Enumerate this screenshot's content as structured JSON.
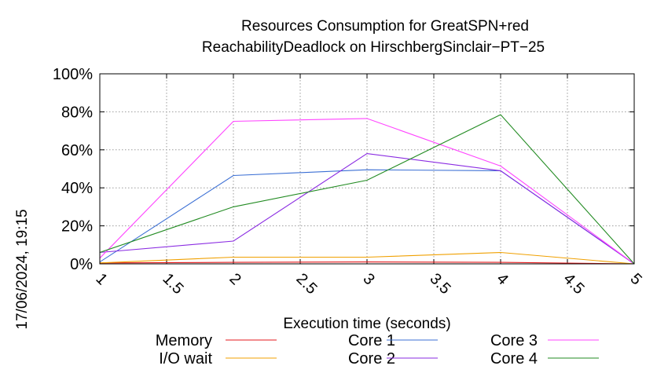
{
  "chart_data": {
    "type": "line",
    "title": "Resources Consumption for GreatSPN+red",
    "subtitle": "ReachabilityDeadlock on HirschbergSinclair−PT−25",
    "xlabel": "Execution time (seconds)",
    "ylabel": "",
    "xlim": [
      1,
      5
    ],
    "ylim": [
      0,
      100
    ],
    "x_ticks": [
      "1",
      "1.5",
      "2",
      "2.5",
      "3",
      "3.5",
      "4",
      "4.5",
      "5"
    ],
    "y_ticks": [
      "0%",
      "20%",
      "40%",
      "60%",
      "80%",
      "100%"
    ],
    "grid": true,
    "legend_position": "bottom",
    "x": [
      1,
      2,
      3,
      4,
      5
    ],
    "series": [
      {
        "name": "Memory",
        "color": "#e41a1c",
        "values": [
          0.5,
          0.8,
          1.0,
          0.8,
          0
        ]
      },
      {
        "name": "I/O wait",
        "color": "#f0a000",
        "values": [
          0.5,
          3.5,
          3.5,
          6,
          0
        ]
      },
      {
        "name": "Core 1",
        "color": "#3b6fd4",
        "values": [
          1,
          46.5,
          49.5,
          49,
          0
        ]
      },
      {
        "name": "Core 2",
        "color": "#8a2be2",
        "values": [
          6,
          12,
          58,
          49,
          0
        ]
      },
      {
        "name": "Core 3",
        "color": "#ff44ff",
        "values": [
          3,
          75,
          76.5,
          51.5,
          0
        ]
      },
      {
        "name": "Core 4",
        "color": "#228b22",
        "values": [
          6,
          30,
          44,
          78.5,
          0
        ]
      }
    ]
  },
  "timestamp": "17/06/2024, 19:15"
}
